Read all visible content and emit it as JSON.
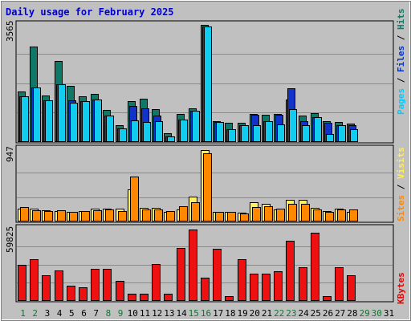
{
  "chart_data": {
    "type": "bar",
    "title": "Daily usage for February 2025",
    "categories": [
      "1",
      "2",
      "3",
      "4",
      "5",
      "6",
      "7",
      "8",
      "9",
      "10",
      "11",
      "12",
      "13",
      "14",
      "15",
      "16",
      "17",
      "18",
      "19",
      "20",
      "21",
      "22",
      "23",
      "24",
      "25",
      "26",
      "27",
      "28",
      "29",
      "30",
      "31"
    ],
    "weekend_days": [
      "1",
      "2",
      "8",
      "9",
      "15",
      "16",
      "22",
      "23",
      "29",
      "30"
    ],
    "day_label_colors": {
      "weekday": "#000000",
      "weekend": "#117733"
    },
    "panels": [
      {
        "id": "pages_files_hits",
        "max_label": "3565",
        "ymax": 3565,
        "legend": [
          {
            "text": "Pages",
            "color": "#00ccff"
          },
          {
            "text": " / ",
            "color": "#000000"
          },
          {
            "text": "Files",
            "color": "#0033cc"
          },
          {
            "text": " / ",
            "color": "#000000"
          },
          {
            "text": "Hits",
            "color": "#117766"
          }
        ],
        "series": [
          {
            "name": "Hits",
            "color": "#117766",
            "values": [
              1520,
              2880,
              1400,
              2440,
              1700,
              1380,
              1450,
              980,
              520,
              1230,
              1320,
              990,
              260,
              840,
              1030,
              3530,
              640,
              590,
              590,
              840,
              820,
              840,
              1280,
              800,
              870,
              640,
              600,
              550,
              null,
              null,
              null
            ]
          },
          {
            "name": "Files",
            "color": "#1133cc",
            "values": [
              1380,
              1640,
              1260,
              1750,
              1260,
              1230,
              1290,
              800,
              410,
              1080,
              1030,
              810,
              170,
              680,
              950,
              3490,
              600,
              390,
              510,
              830,
              630,
              820,
              1620,
              640,
              750,
              580,
              510,
              510,
              null,
              null,
              null
            ]
          },
          {
            "name": "Pages",
            "color": "#11ccee",
            "values": [
              1380,
              1640,
              1260,
              1750,
              1180,
              1230,
              1290,
              800,
              410,
              650,
              600,
              620,
              170,
              680,
              950,
              3490,
              600,
              390,
              510,
              520,
              630,
              530,
              1000,
              520,
              750,
              240,
              510,
              390,
              null,
              null,
              null
            ]
          }
        ]
      },
      {
        "id": "visits_sites",
        "max_label": "947",
        "ymax": 947,
        "legend": [
          {
            "text": "Sites",
            "color": "#ff8800"
          },
          {
            "text": " / ",
            "color": "#000000"
          },
          {
            "text": "Visits",
            "color": "#ffee55"
          }
        ],
        "series": [
          {
            "name": "Visits",
            "color": "#ffee66",
            "values": [
              170,
              170,
              150,
              140,
              120,
              140,
              170,
              170,
              170,
              420,
              180,
              180,
              130,
              160,
              320,
              930,
              130,
              130,
              110,
              250,
              230,
              160,
              280,
              280,
              180,
              140,
              170,
              130,
              null,
              null,
              null
            ]
          },
          {
            "name": "Sites",
            "color": "#ff8800",
            "values": [
              190,
              150,
              140,
              150,
              130,
              140,
              150,
              160,
              140,
              580,
              160,
              160,
              140,
              200,
              250,
              880,
              120,
              130,
              100,
              190,
              200,
              170,
              230,
              230,
              160,
              130,
              160,
              160,
              null,
              null,
              null
            ]
          }
        ]
      },
      {
        "id": "kbytes",
        "max_label": "59825",
        "ymax": 59825,
        "legend": [
          {
            "text": "KBytes",
            "color": "#ee0000"
          }
        ],
        "series": [
          {
            "name": "KBytes",
            "color": "#ee1111",
            "values": [
              29800,
              34300,
              21200,
              24900,
              12500,
              11200,
              26100,
              26100,
              16500,
              5900,
              5700,
              30500,
              5900,
              43600,
              58400,
              18800,
              42900,
              4200,
              34500,
              22600,
              22600,
              24400,
              49000,
              27300,
              55800,
              3900,
              27300,
              21200,
              null,
              null,
              null
            ]
          }
        ]
      }
    ]
  }
}
